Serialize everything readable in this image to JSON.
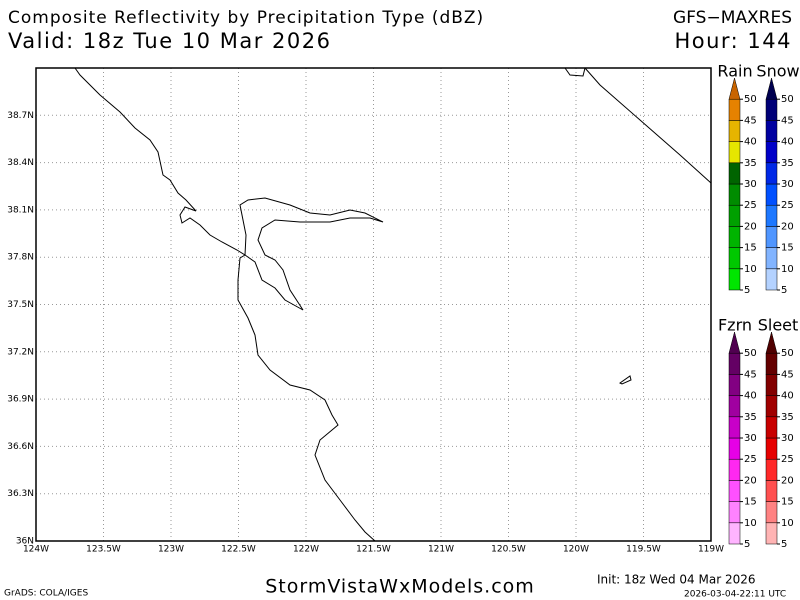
{
  "header": {
    "title": "Composite Reflectivity by Precipitation Type (dBZ)",
    "model": "GFS−MAXRES",
    "valid": "Valid: 18z Tue 10 Mar 2026",
    "hour": "Hour: 144"
  },
  "map": {
    "lat_labels": [
      "38.7N",
      "38.4N",
      "38.1N",
      "37.8N",
      "37.5N",
      "37.2N",
      "36.9N",
      "36.6N",
      "36.3N",
      "36N"
    ],
    "lon_labels": [
      "124W",
      "123.5W",
      "123W",
      "122.5W",
      "122W",
      "121.5W",
      "121W",
      "120.5W",
      "120W",
      "119.5W",
      "119W"
    ]
  },
  "legend": {
    "levels": [
      5,
      10,
      15,
      20,
      25,
      30,
      35,
      40,
      45,
      50
    ],
    "bars": [
      {
        "name": "Rain",
        "colors": [
          "#00e600",
          "#00c800",
          "#00b400",
          "#00a000",
          "#008c00",
          "#006400",
          "#e6e600",
          "#e6b400",
          "#e68200",
          "#c86400"
        ]
      },
      {
        "name": "Snow",
        "colors": [
          "#b4d2ff",
          "#82b4ff",
          "#5096ff",
          "#1e78ff",
          "#0050ff",
          "#0028e6",
          "#0000c8",
          "#0000a0",
          "#000078",
          "#000050"
        ]
      },
      {
        "name": "Fzrn",
        "colors": [
          "#ffb4ff",
          "#ff82ff",
          "#ff50ff",
          "#ff28f0",
          "#e600e6",
          "#c800c8",
          "#a000a0",
          "#820082",
          "#640064",
          "#500050"
        ]
      },
      {
        "name": "Sleet",
        "colors": [
          "#ffb4b4",
          "#ff8282",
          "#ff5050",
          "#ff2828",
          "#e60000",
          "#c80000",
          "#a00000",
          "#820000",
          "#640000",
          "#500000"
        ]
      }
    ]
  },
  "footer": {
    "credit": "GrADS: COLA/IGES",
    "site": "StormVistaWxModels.com",
    "init": "Init: 18z Wed 04 Mar 2026",
    "stamp": "2026-03-04-22:11 UTC"
  }
}
